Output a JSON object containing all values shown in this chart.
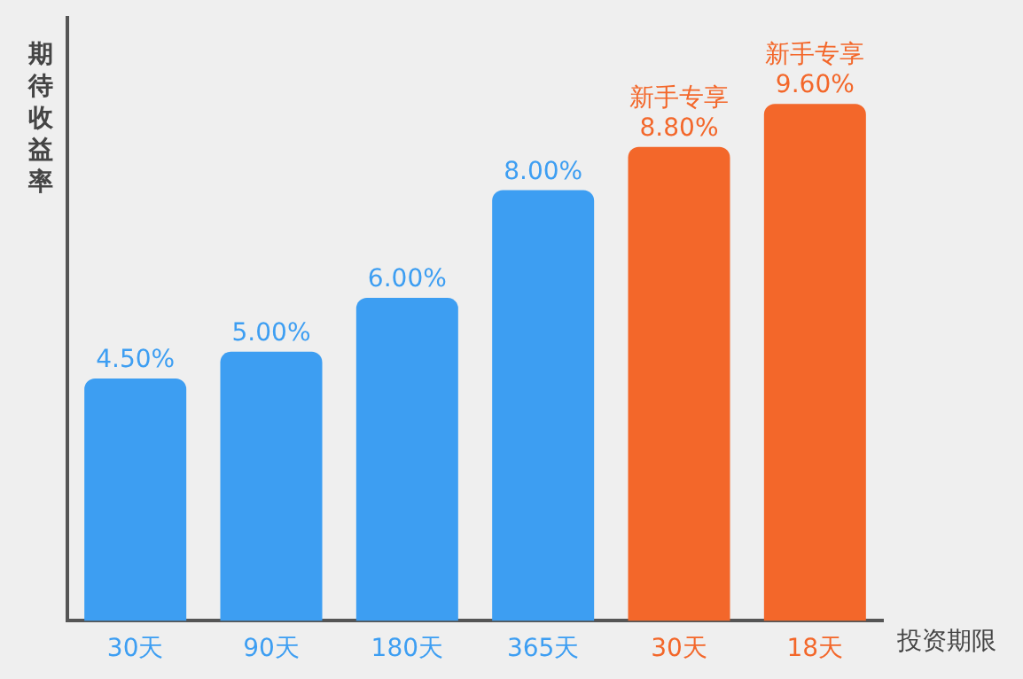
{
  "chart_data": {
    "type": "bar",
    "ylabel": "期待收益率",
    "xlabel": "投资期限",
    "categories": [
      "30天",
      "90天",
      "180天",
      "365天",
      "30天",
      "18天"
    ],
    "values": [
      4.5,
      5,
      6,
      8,
      8.8,
      9.6
    ],
    "colors": [
      "#3d9ef2",
      "#3d9ef2",
      "#3d9ef2",
      "#3d9ef2",
      "#f3672a",
      "#f3672a"
    ],
    "value_labels": [
      "4.50%",
      "5.00%",
      "6.00%",
      "8.00%",
      "8.80%",
      "9.60%"
    ],
    "annotations": [
      "新手专享",
      "新手专享"
    ],
    "ylim": [
      0,
      11.2
    ],
    "tick_labels": "x",
    "grid": false,
    "legend": false
  }
}
